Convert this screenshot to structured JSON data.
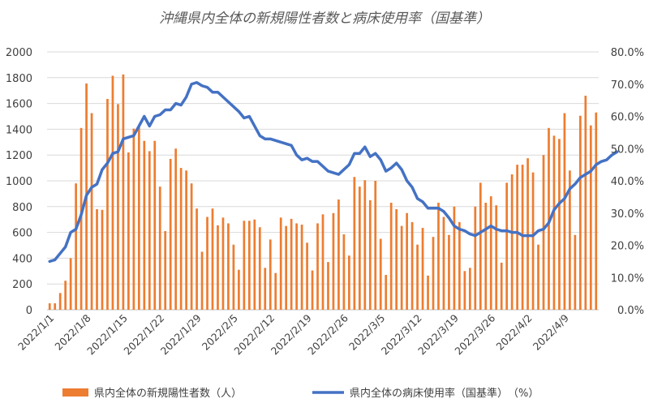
{
  "chart_data": {
    "type": "bar+line",
    "title": "沖縄県内全体の新規陽性者数と病床使用率（国基準）",
    "x_tick_labels": [
      "2022/1/1",
      "2022/1/8",
      "2022/1/15",
      "2022/1/22",
      "2022/1/29",
      "2022/2/5",
      "2022/2/12",
      "2022/2/19",
      "2022/2/26",
      "2022/3/5",
      "2022/3/12",
      "2022/3/19",
      "2022/3/26",
      "2022/4/2",
      "2022/4/9"
    ],
    "y_left": {
      "min": 0,
      "max": 2000,
      "step": 200,
      "tick_labels": [
        "0",
        "200",
        "400",
        "600",
        "800",
        "1000",
        "1200",
        "1400",
        "1600",
        "1800",
        "2000"
      ]
    },
    "y_right": {
      "min": 0,
      "max": 80,
      "step": 10,
      "tick_labels": [
        "0.0%",
        "10.0%",
        "20.0%",
        "30.0%",
        "40.0%",
        "50.0%",
        "60.0%",
        "70.0%",
        "80.0%"
      ]
    },
    "series": [
      {
        "name": "県内全体の新規陽性者数（人）",
        "kind": "bar",
        "axis": "left",
        "color": "#ED7D31",
        "values": [
          50,
          50,
          130,
          225,
          400,
          980,
          1410,
          1755,
          1525,
          780,
          775,
          1635,
          1815,
          1595,
          1825,
          1220,
          1405,
          1430,
          1310,
          1230,
          1310,
          955,
          610,
          1170,
          1250,
          1100,
          1080,
          980,
          785,
          450,
          720,
          785,
          655,
          715,
          670,
          505,
          310,
          690,
          690,
          700,
          640,
          325,
          545,
          285,
          715,
          650,
          705,
          670,
          660,
          520,
          305,
          670,
          740,
          370,
          750,
          855,
          585,
          420,
          1030,
          955,
          1005,
          850,
          1000,
          550,
          270,
          830,
          780,
          650,
          750,
          680,
          505,
          635,
          265,
          565,
          830,
          720,
          580,
          800,
          680,
          300,
          325,
          800,
          985,
          830,
          880,
          810,
          365,
          985,
          1050,
          1125,
          1125,
          1175,
          1065,
          505,
          1200,
          1410,
          1350,
          1325,
          1525,
          1080,
          580,
          1505,
          1660,
          1430,
          1530
        ]
      },
      {
        "name": "県内全体の病床使用率（国基準）　（%）",
        "kind": "line",
        "axis": "right",
        "color": "#4472C4",
        "values": [
          15.0,
          15.5,
          17.5,
          19.5,
          24.0,
          25.0,
          29.5,
          35.5,
          38.0,
          39.0,
          43.5,
          45.5,
          48.5,
          49.0,
          53.0,
          53.5,
          54.0,
          57.0,
          60.0,
          57.0,
          60.0,
          60.5,
          62.0,
          62.0,
          64.0,
          63.5,
          66.0,
          70.0,
          70.5,
          69.5,
          69.0,
          67.5,
          67.5,
          66.0,
          64.5,
          63.0,
          61.5,
          59.5,
          60.0,
          57.0,
          54.0,
          53.0,
          53.0,
          52.5,
          52.0,
          51.5,
          51.0,
          48.0,
          46.5,
          47.0,
          46.0,
          46.0,
          44.5,
          43.0,
          42.5,
          42.0,
          43.5,
          45.0,
          48.5,
          48.5,
          50.5,
          47.5,
          48.5,
          46.5,
          43.0,
          44.0,
          45.5,
          43.5,
          40.0,
          38.0,
          34.5,
          33.5,
          31.5,
          31.5,
          31.5,
          30.5,
          28.5,
          26.0,
          25.0,
          24.5,
          23.5,
          23.0,
          24.0,
          25.0,
          26.0,
          25.0,
          24.5,
          24.5,
          24.0,
          24.0,
          23.0,
          23.0,
          23.0,
          24.5,
          25.0,
          27.0,
          31.0,
          33.0,
          34.5,
          37.5,
          39.0,
          41.0,
          42.0,
          43.0,
          45.0,
          46.0,
          46.5,
          48.0,
          49.0
        ]
      }
    ],
    "legend_position": "bottom"
  }
}
